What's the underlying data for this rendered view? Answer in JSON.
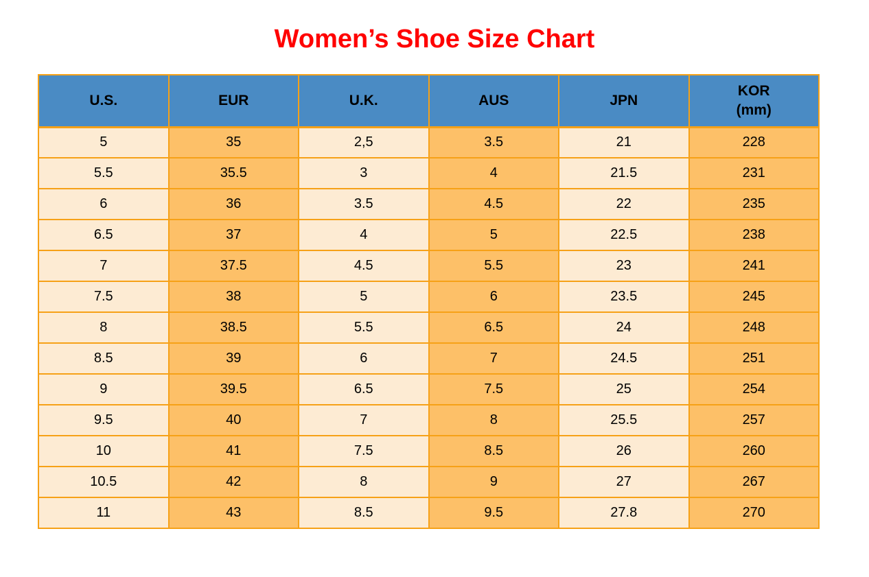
{
  "page": {
    "title": "Women’s Shoe Size Chart"
  },
  "colors": {
    "title_red": "#FF0000",
    "header_blue": "#4A8BC4",
    "cell_cream": "#FDEBD3",
    "cell_orange": "#FDC068",
    "border_orange": "#F6A117",
    "text_black": "#000000"
  },
  "chart_data": {
    "type": "table",
    "title": "Women’s Shoe Size Chart",
    "columns": [
      "U.S.",
      "EUR",
      "U.K.",
      "AUS",
      "JPN",
      "KOR\n(mm)"
    ],
    "column_fill_pattern": [
      "cream",
      "orange",
      "cream",
      "orange",
      "cream",
      "orange"
    ],
    "rows": [
      [
        "5",
        "35",
        "2,5",
        "3.5",
        "21",
        "228"
      ],
      [
        "5.5",
        "35.5",
        "3",
        "4",
        "21.5",
        "231"
      ],
      [
        "6",
        "36",
        "3.5",
        "4.5",
        "22",
        "235"
      ],
      [
        "6.5",
        "37",
        "4",
        "5",
        "22.5",
        "238"
      ],
      [
        "7",
        "37.5",
        "4.5",
        "5.5",
        "23",
        "241"
      ],
      [
        "7.5",
        "38",
        "5",
        "6",
        "23.5",
        "245"
      ],
      [
        "8",
        "38.5",
        "5.5",
        "6.5",
        "24",
        "248"
      ],
      [
        "8.5",
        "39",
        "6",
        "7",
        "24.5",
        "251"
      ],
      [
        "9",
        "39.5",
        "6.5",
        "7.5",
        "25",
        "254"
      ],
      [
        "9.5",
        "40",
        "7",
        "8",
        "25.5",
        "257"
      ],
      [
        "10",
        "41",
        "7.5",
        "8.5",
        "26",
        "260"
      ],
      [
        "10.5",
        "42",
        "8",
        "9",
        "27",
        "267"
      ],
      [
        "11",
        "43",
        "8.5",
        "9.5",
        "27.8",
        "270"
      ]
    ]
  }
}
